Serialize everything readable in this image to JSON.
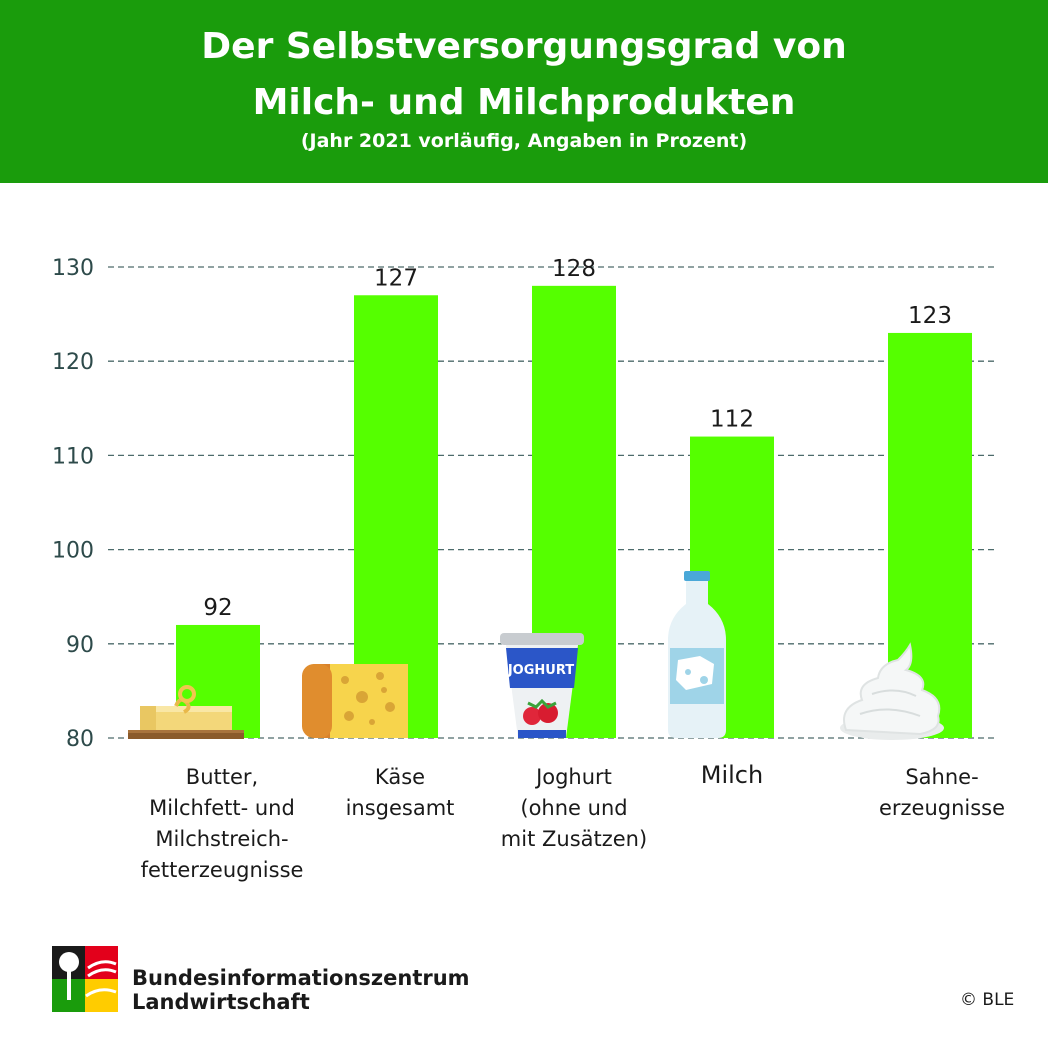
{
  "header": {
    "title_line1": "Der Selbstversorgungsgrad von",
    "title_line2": "Milch- und Milchprodukten",
    "subtitle": "(Jahr 2021 vorläufig, Angaben in Prozent)"
  },
  "chart_data": {
    "type": "bar",
    "categories": [
      "Butter, Milchfett- und Milchstreichfetterzeugnisse",
      "Käse insgesamt",
      "Joghurt (ohne und mit Zusätzen)",
      "Milch",
      "Sahneerzeugnisse"
    ],
    "category_lines": [
      [
        "Butter,",
        "Milchfett- und",
        "Milchstreich-",
        "fetterzeugnisse"
      ],
      [
        "Käse",
        "insgesamt"
      ],
      [
        "Joghurt",
        "(ohne und",
        "mit Zusätzen)"
      ],
      [
        "Milch"
      ],
      [
        "Sahne-",
        "erzeugnisse"
      ]
    ],
    "values": [
      92,
      127,
      128,
      112,
      123
    ],
    "value_labels": [
      "92",
      "127",
      "128",
      "112",
      "123"
    ],
    "yticks": [
      80,
      90,
      100,
      110,
      120,
      130
    ],
    "ytick_labels": [
      "80",
      "90",
      "100",
      "110",
      "120",
      "130"
    ],
    "ylim": [
      80,
      130
    ],
    "grid": true,
    "bar_color": "#55ff00",
    "icons": [
      "butter-icon",
      "cheese-icon",
      "yogurt-cup-icon",
      "milk-bottle-icon",
      "whipped-cream-icon"
    ],
    "icon_texts": {
      "yogurt": "JOGHURT"
    }
  },
  "footer": {
    "org_line1": "Bundesinformationszentrum",
    "org_line2": "Landwirtschaft",
    "copyright": "© BLE"
  },
  "colors": {
    "header_bg": "#1a9c0c",
    "bar": "#55ff00",
    "grid": "#4d6b6b",
    "text": "#1a1a1a"
  }
}
